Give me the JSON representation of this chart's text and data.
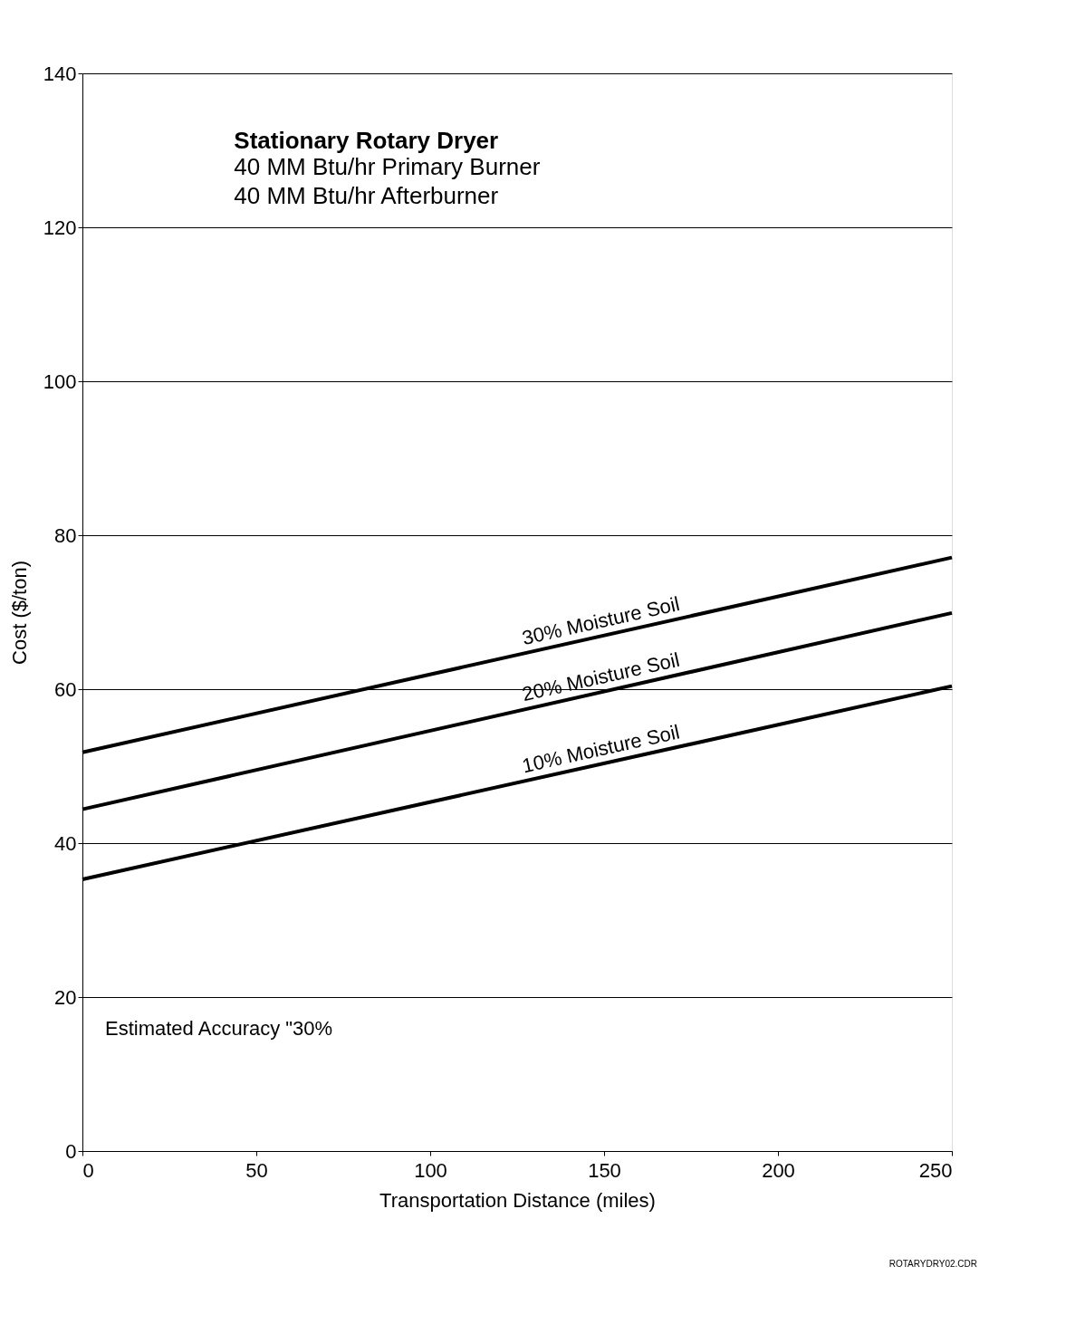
{
  "chart_data": {
    "type": "line",
    "title": "Stationary Rotary Dryer",
    "subtitle": "40 MM Btu/hr Primary Burner\n40 MM Btu/hr Afterburner",
    "xlabel": "Transportation Distance (miles)",
    "ylabel": "Cost ($/ton)",
    "x": [
      0,
      250
    ],
    "series": [
      {
        "name": "30% Moisture Soil",
        "color": "#000000",
        "values": [
          51.8,
          77.1
        ]
      },
      {
        "name": "20% Moisture Soil",
        "color": "#000000",
        "values": [
          44.4,
          69.9
        ]
      },
      {
        "name": "10% Moisture Soil",
        "color": "#000000",
        "values": [
          35.3,
          60.4
        ]
      }
    ],
    "xlim": [
      0,
      250
    ],
    "xticks": [
      0,
      50,
      100,
      150,
      200,
      250
    ],
    "ylim": [
      0,
      140
    ],
    "yticks": [
      0,
      20,
      40,
      60,
      80,
      100,
      120,
      140
    ],
    "grid": "y",
    "legend": false,
    "marker": "none",
    "line_style": "solid",
    "annotations": [
      "Estimated Accuracy \"30%",
      "ROTARYDRY02.CDR"
    ]
  }
}
